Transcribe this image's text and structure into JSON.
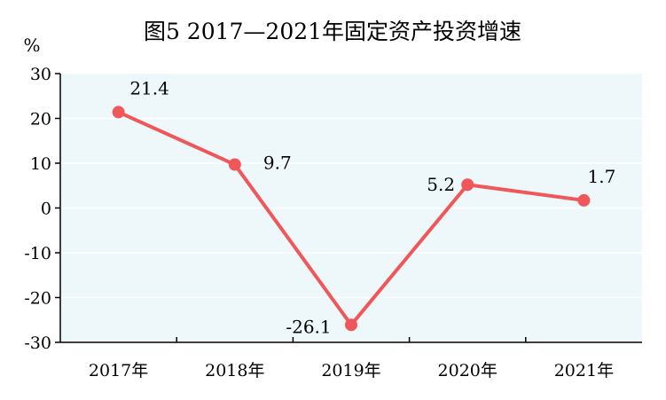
{
  "chart_data": {
    "type": "line",
    "title": "图5  2017—2021年固定资产投资增速",
    "ylabel": "%",
    "xlabel": "",
    "categories": [
      "2017年",
      "2018年",
      "2019年",
      "2020年",
      "2021年"
    ],
    "values": [
      21.4,
      9.7,
      -26.1,
      5.2,
      1.7
    ],
    "data_labels": [
      "21.4",
      "9.7",
      "-26.1",
      "5.2",
      "1.7"
    ],
    "ylim": [
      -30,
      30
    ],
    "yticks": [
      "30",
      "20",
      "10",
      "0",
      "-10",
      "-20",
      "-30"
    ],
    "grid": true,
    "legend": "none",
    "colors": {
      "line": "#f0575a",
      "plot_background": "#eef7f9",
      "grid": "#ffffff",
      "axis": "#000000"
    }
  }
}
